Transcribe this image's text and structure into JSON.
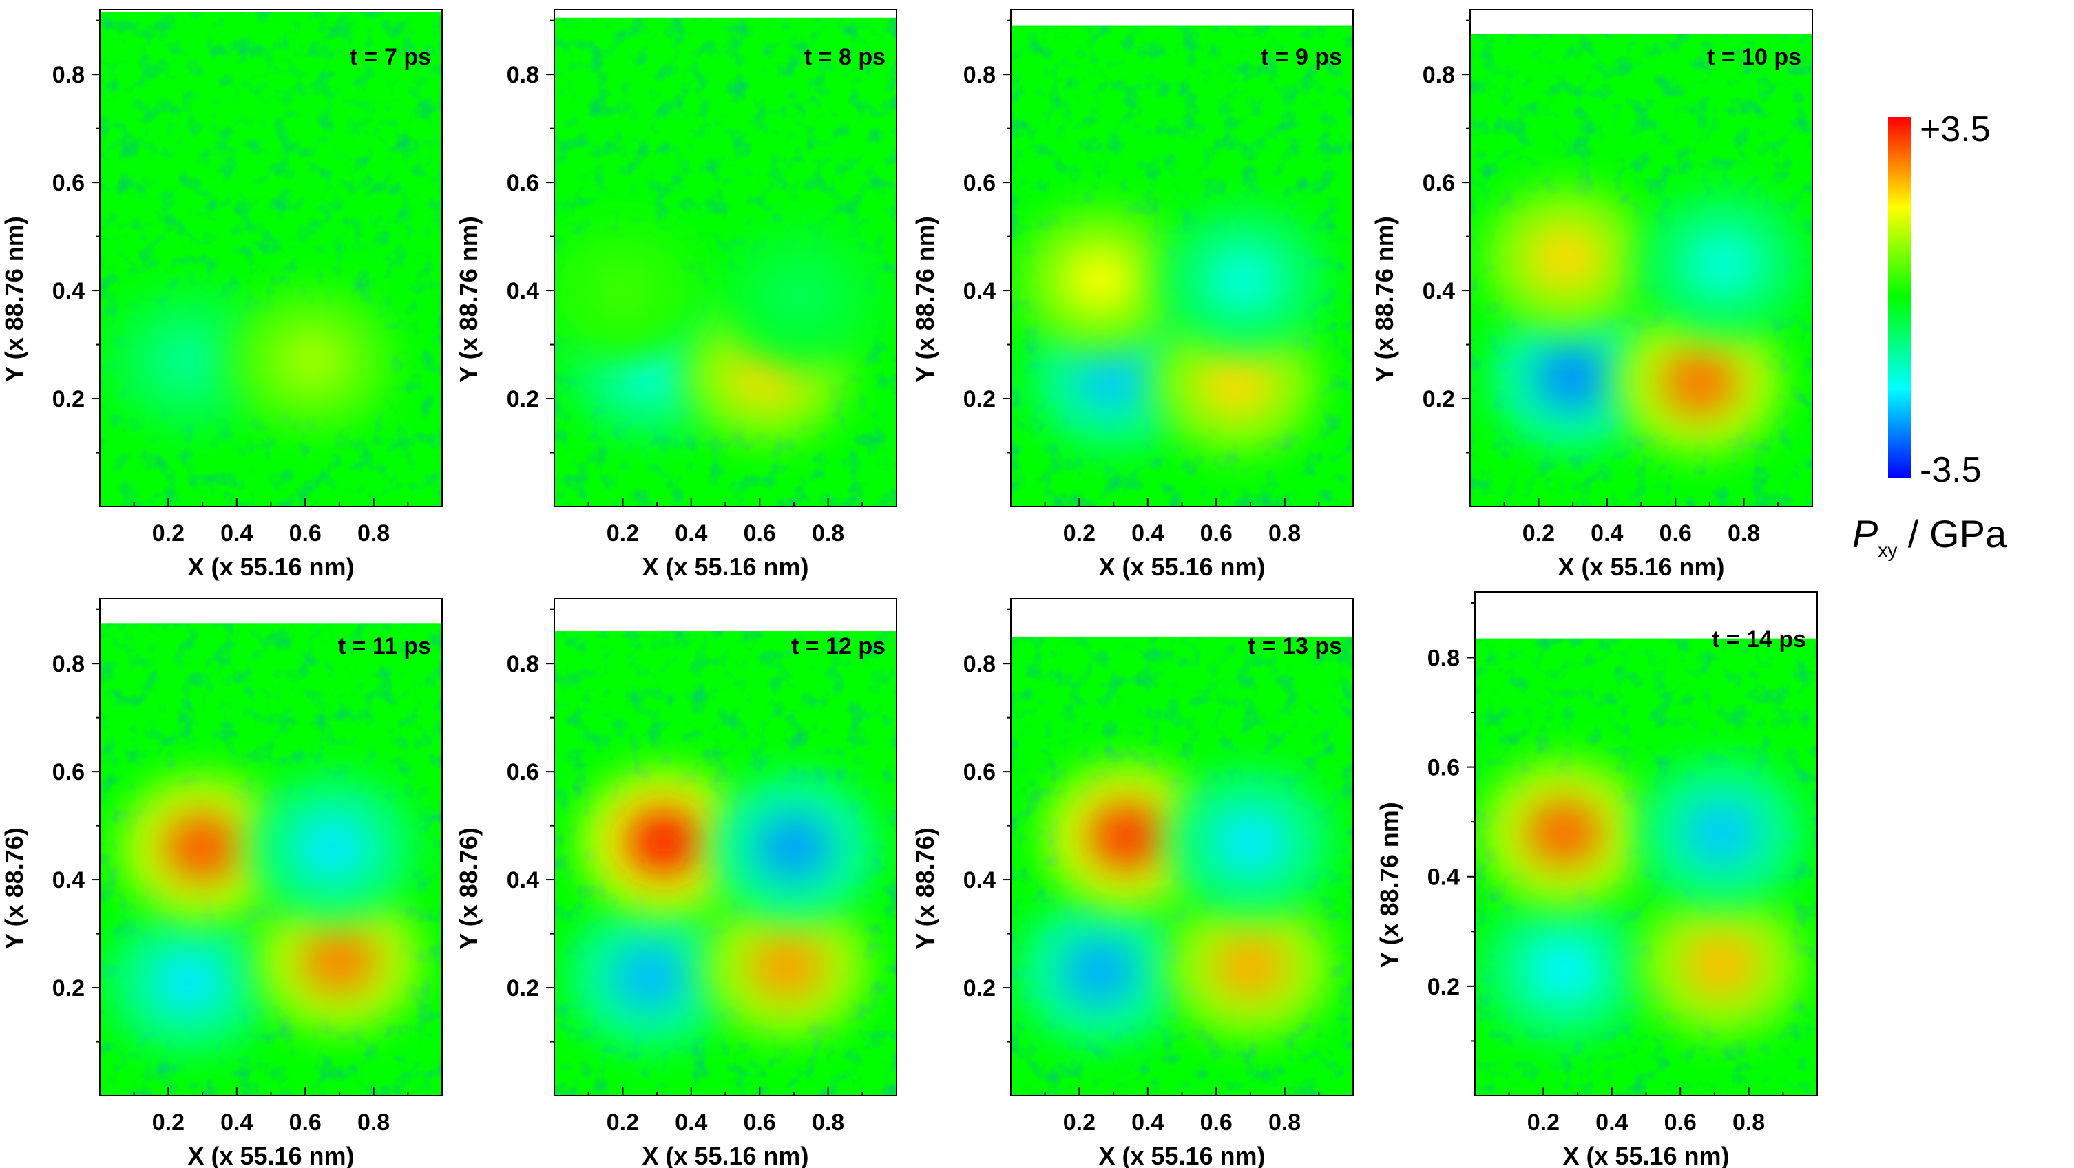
{
  "colorbar": {
    "max_label": "+3.5",
    "min_label": "-3.5",
    "label_main": "P",
    "label_sub": "xy",
    "label_unit": " / GPa",
    "colors": [
      "#0000ff",
      "#00ffff",
      "#00ff00",
      "#ffff00",
      "#ff0000"
    ]
  },
  "chart_data": [
    {
      "type": "heatmap",
      "title": "t = 7 ps",
      "xlabel": "X (x 55.16 nm)",
      "ylabel": "Y (x 88.76 nm)",
      "xticks": [
        "0.2",
        "0.4",
        "0.6",
        "0.8"
      ],
      "yticks": [
        "0.2",
        "0.4",
        "0.6",
        "0.8"
      ],
      "xlim": [
        0,
        1
      ],
      "ylim": [
        0,
        0.92
      ],
      "data_top": 0.915,
      "value_range": [
        -3.5,
        3.5
      ],
      "blobs": [
        {
          "x": 0.26,
          "y": 0.27,
          "value": -1.0
        },
        {
          "x": 0.62,
          "y": 0.27,
          "value": 1.1
        }
      ]
    },
    {
      "type": "heatmap",
      "title": "t = 8 ps",
      "xlabel": "X (x 55.16 nm)",
      "ylabel": "Y (x 88.76 nm)",
      "xticks": [
        "0.2",
        "0.4",
        "0.6",
        "0.8"
      ],
      "yticks": [
        "0.2",
        "0.4",
        "0.6",
        "0.8"
      ],
      "xlim": [
        0,
        1
      ],
      "ylim": [
        0,
        0.92
      ],
      "data_top": 0.905,
      "value_range": [
        -3.5,
        3.5
      ],
      "blobs": [
        {
          "x": 0.28,
          "y": 0.26,
          "value": -1.6
        },
        {
          "x": 0.62,
          "y": 0.25,
          "value": 2.0
        },
        {
          "x": 0.72,
          "y": 0.39,
          "value": -0.6
        },
        {
          "x": 0.2,
          "y": 0.4,
          "value": 0.4
        }
      ]
    },
    {
      "type": "heatmap",
      "title": "t = 9 ps",
      "xlabel": "X (x 55.16 nm)",
      "ylabel": "Y (x 88.76 nm)",
      "xticks": [
        "0.2",
        "0.4",
        "0.6",
        "0.8"
      ],
      "yticks": [
        "0.2",
        "0.4",
        "0.6",
        "0.8"
      ],
      "xlim": [
        0,
        1
      ],
      "ylim": [
        0,
        0.92
      ],
      "data_top": 0.89,
      "value_range": [
        -3.5,
        3.5
      ],
      "blobs": [
        {
          "x": 0.3,
          "y": 0.24,
          "value": -2.1
        },
        {
          "x": 0.66,
          "y": 0.23,
          "value": 2.0
        },
        {
          "x": 0.26,
          "y": 0.42,
          "value": 1.7
        },
        {
          "x": 0.68,
          "y": 0.42,
          "value": -1.5
        }
      ]
    },
    {
      "type": "heatmap",
      "title": "t = 10 ps",
      "xlabel": "X (x 55.16 nm)",
      "ylabel": "Y (x 88.76 nm)",
      "xticks": [
        "0.2",
        "0.4",
        "0.6",
        "0.8"
      ],
      "yticks": [
        "0.2",
        "0.4",
        "0.6",
        "0.8"
      ],
      "xlim": [
        0,
        1
      ],
      "ylim": [
        0,
        0.92
      ],
      "data_top": 0.875,
      "value_range": [
        -3.5,
        3.5
      ],
      "blobs": [
        {
          "x": 0.3,
          "y": 0.24,
          "value": -2.5
        },
        {
          "x": 0.67,
          "y": 0.23,
          "value": 2.7
        },
        {
          "x": 0.28,
          "y": 0.46,
          "value": 2.0
        },
        {
          "x": 0.74,
          "y": 0.45,
          "value": -1.5
        }
      ]
    },
    {
      "type": "heatmap",
      "title": "t = 11 ps",
      "xlabel": "X (x 55.16 nm)",
      "ylabel": "Y (x 88.76)",
      "xticks": [
        "0.2",
        "0.4",
        "0.6",
        "0.8"
      ],
      "yticks": [
        "0.2",
        "0.4",
        "0.6",
        "0.8"
      ],
      "xlim": [
        0,
        1
      ],
      "ylim": [
        0,
        0.92
      ],
      "data_top": 0.875,
      "value_range": [
        -3.5,
        3.5
      ],
      "blobs": [
        {
          "x": 0.26,
          "y": 0.21,
          "value": -1.9
        },
        {
          "x": 0.7,
          "y": 0.25,
          "value": 2.6
        },
        {
          "x": 0.3,
          "y": 0.46,
          "value": 2.9
        },
        {
          "x": 0.68,
          "y": 0.46,
          "value": -1.9
        }
      ]
    },
    {
      "type": "heatmap",
      "title": "t = 12 ps",
      "xlabel": "X (x 55.16 nm)",
      "ylabel": "Y (x 88.76)",
      "xticks": [
        "0.2",
        "0.4",
        "0.6",
        "0.8"
      ],
      "yticks": [
        "0.2",
        "0.4",
        "0.6",
        "0.8"
      ],
      "xlim": [
        0,
        1
      ],
      "ylim": [
        0,
        0.92
      ],
      "data_top": 0.86,
      "value_range": [
        -3.5,
        3.5
      ],
      "blobs": [
        {
          "x": 0.28,
          "y": 0.22,
          "value": -2.2
        },
        {
          "x": 0.68,
          "y": 0.24,
          "value": 2.4
        },
        {
          "x": 0.32,
          "y": 0.47,
          "value": 3.3
        },
        {
          "x": 0.7,
          "y": 0.46,
          "value": -2.4
        }
      ]
    },
    {
      "type": "heatmap",
      "title": "t = 13 ps",
      "xlabel": "X (x 55.16 nm)",
      "ylabel": "Y (x 88.76)",
      "xticks": [
        "0.2",
        "0.4",
        "0.6",
        "0.8"
      ],
      "yticks": [
        "0.2",
        "0.4",
        "0.6",
        "0.8"
      ],
      "xlim": [
        0,
        1
      ],
      "ylim": [
        0,
        0.92
      ],
      "data_top": 0.85,
      "value_range": [
        -3.5,
        3.5
      ],
      "blobs": [
        {
          "x": 0.26,
          "y": 0.23,
          "value": -2.3
        },
        {
          "x": 0.7,
          "y": 0.24,
          "value": 2.3
        },
        {
          "x": 0.34,
          "y": 0.48,
          "value": 3.1
        },
        {
          "x": 0.7,
          "y": 0.47,
          "value": -1.9
        }
      ]
    },
    {
      "type": "heatmap",
      "title": "t = 14 ps",
      "xlabel": "X (x 55.16 nm)",
      "ylabel": "Y (x 88.76 nm)",
      "xticks": [
        "0.2",
        "0.4",
        "0.6",
        "0.8"
      ],
      "yticks": [
        "0.2",
        "0.4",
        "0.6",
        "0.8"
      ],
      "xlim": [
        0,
        1
      ],
      "ylim": [
        0,
        0.92
      ],
      "data_top": 0.835,
      "value_range": [
        -3.5,
        3.5
      ],
      "blobs": [
        {
          "x": 0.26,
          "y": 0.23,
          "value": -1.8
        },
        {
          "x": 0.72,
          "y": 0.24,
          "value": 2.2
        },
        {
          "x": 0.26,
          "y": 0.48,
          "value": 2.8
        },
        {
          "x": 0.72,
          "y": 0.48,
          "value": -2.1
        }
      ]
    }
  ]
}
